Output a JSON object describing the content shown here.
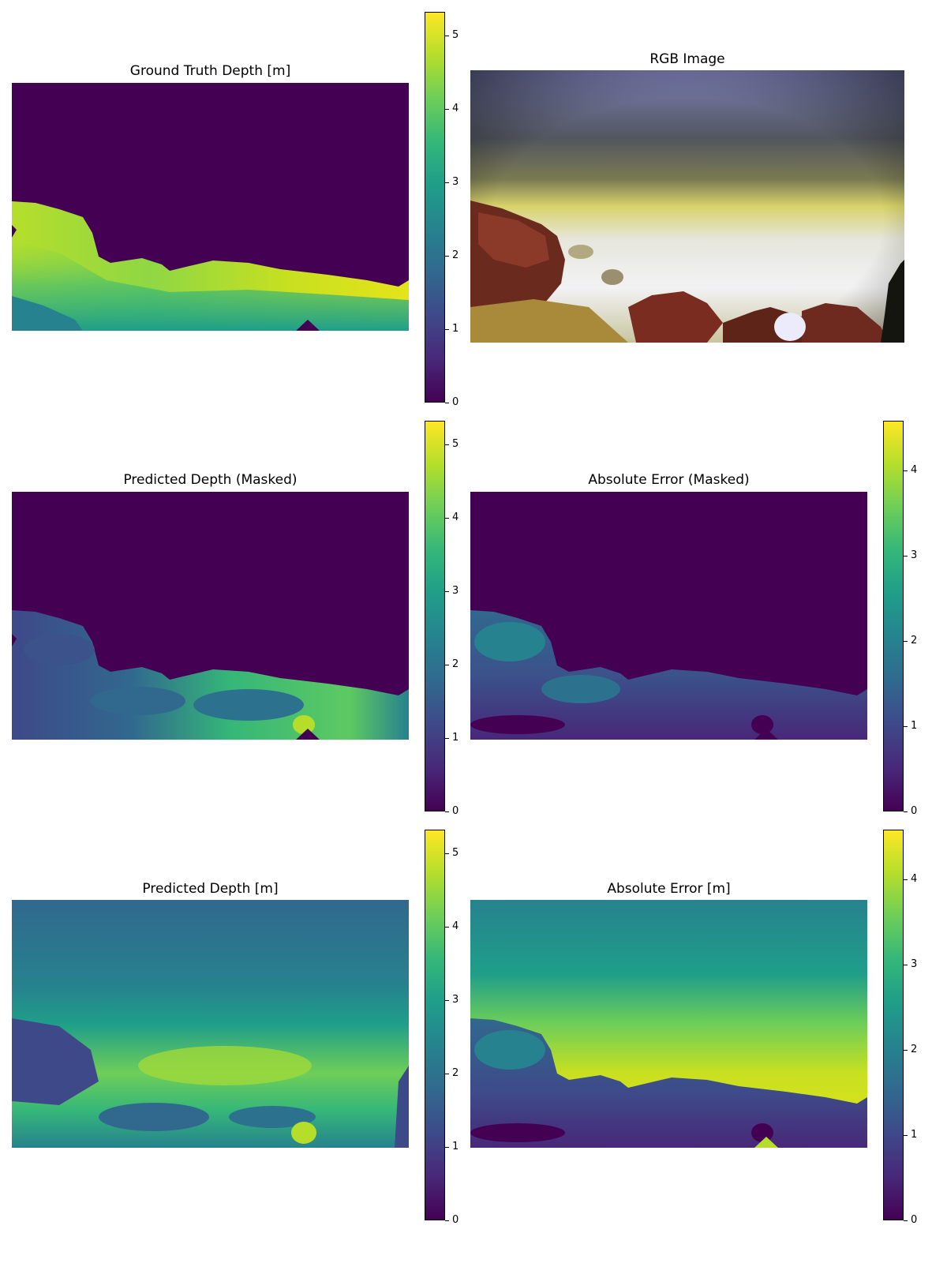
{
  "colors": {
    "viridis": [
      "#440154",
      "#482878",
      "#3e4989",
      "#31688e",
      "#26828e",
      "#1f9e89",
      "#35b779",
      "#6ece58",
      "#b5de2b",
      "#fde725"
    ],
    "background": "#ffffff"
  },
  "chart_data": [
    {
      "type": "heatmap",
      "title": "Ground Truth Depth [m]",
      "colormap": "viridis",
      "colorbar": {
        "range": [
          0,
          5.3
        ],
        "ticks": [
          "0",
          "1",
          "2",
          "3",
          "4",
          "5"
        ]
      },
      "mask": "no ground truth above seafloor (value 0)"
    },
    {
      "type": "image",
      "title": "RGB Image",
      "content": "underwater scene, rocky seafloor with sandy bottom"
    },
    {
      "type": "heatmap",
      "title": "Predicted Depth (Masked)",
      "colormap": "viridis",
      "colorbar": {
        "range": [
          0,
          5.3
        ],
        "ticks": [
          "0",
          "1",
          "2",
          "3",
          "4",
          "5"
        ]
      }
    },
    {
      "type": "heatmap",
      "title": "Absolute Error (Masked)",
      "colormap": "viridis",
      "colorbar": {
        "range": [
          0,
          4.6
        ],
        "ticks": [
          "0",
          "1",
          "2",
          "3",
          "4"
        ]
      }
    },
    {
      "type": "heatmap",
      "title": "Predicted Depth [m]",
      "colormap": "viridis",
      "colorbar": {
        "range": [
          0,
          5.3
        ],
        "ticks": [
          "0",
          "1",
          "2",
          "3",
          "4",
          "5"
        ]
      }
    },
    {
      "type": "heatmap",
      "title": "Absolute Error [m]",
      "colormap": "viridis",
      "colorbar": {
        "range": [
          0,
          4.6
        ],
        "ticks": [
          "0",
          "1",
          "2",
          "3",
          "4"
        ]
      }
    }
  ]
}
